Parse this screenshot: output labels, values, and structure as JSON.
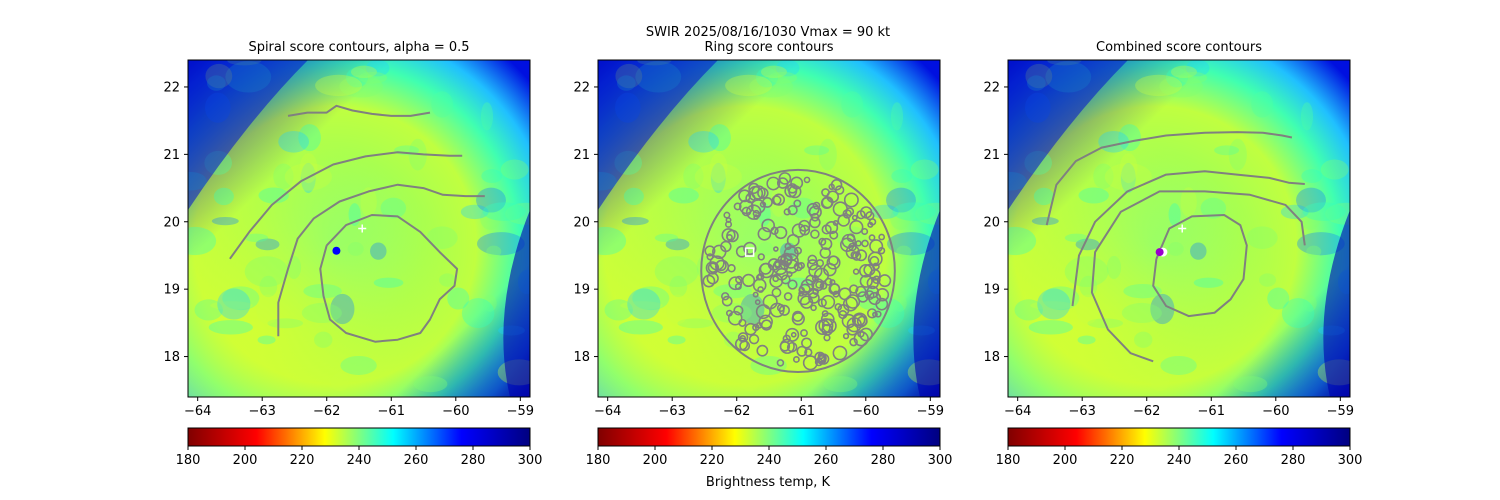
{
  "figure": {
    "suptitle_line1": "SWIR  2025/08/16/1030    Vmax = 90 kt",
    "colorbar_label": "Brightness temp, K"
  },
  "colormap": {
    "name": "jet-reversed",
    "stops": [
      "#800000",
      "#ff0000",
      "#ffff00",
      "#00ffff",
      "#0000ff",
      "#000080"
    ],
    "range": [
      180,
      300
    ]
  },
  "contour_color": "#808080",
  "chart_data": [
    {
      "type": "heatmap",
      "title": "Spiral score contours, alpha =  0.5",
      "xlim": [
        -64.15,
        -58.85
      ],
      "ylim": [
        17.4,
        22.4
      ],
      "xticks": [
        -64,
        -63,
        -62,
        -61,
        -60,
        -59
      ],
      "yticks": [
        18,
        19,
        20,
        21,
        22
      ],
      "colorbar_ticks": [
        180,
        200,
        220,
        240,
        260,
        280,
        300
      ],
      "markers": [
        {
          "kind": "plus",
          "lon": -61.45,
          "lat": 19.9,
          "color": "#ffffff"
        },
        {
          "kind": "dot",
          "lon": -61.85,
          "lat": 19.57,
          "color": "#0000ff"
        }
      ],
      "contours": [
        [
          [
            -62.6,
            21.57
          ],
          [
            -62.3,
            21.62
          ],
          [
            -62.0,
            21.62
          ],
          [
            -61.85,
            21.72
          ],
          [
            -61.6,
            21.65
          ],
          [
            -61.3,
            21.6
          ],
          [
            -61.0,
            21.57
          ],
          [
            -60.7,
            21.57
          ],
          [
            -60.4,
            21.62
          ]
        ],
        [
          [
            -63.5,
            19.45
          ],
          [
            -63.2,
            19.85
          ],
          [
            -62.85,
            20.25
          ],
          [
            -62.4,
            20.6
          ],
          [
            -61.9,
            20.85
          ],
          [
            -61.4,
            20.97
          ],
          [
            -60.9,
            21.03
          ],
          [
            -60.5,
            21.0
          ],
          [
            -60.1,
            20.98
          ],
          [
            -59.9,
            20.98
          ]
        ],
        [
          [
            -62.75,
            18.3
          ],
          [
            -62.75,
            18.8
          ],
          [
            -62.6,
            19.3
          ],
          [
            -62.45,
            19.75
          ],
          [
            -62.2,
            20.05
          ],
          [
            -61.8,
            20.3
          ],
          [
            -61.35,
            20.45
          ],
          [
            -60.9,
            20.55
          ],
          [
            -60.5,
            20.5
          ],
          [
            -60.2,
            20.4
          ],
          [
            -59.85,
            20.38
          ],
          [
            -59.55,
            20.38
          ]
        ],
        [
          [
            -62.0,
            19.65
          ],
          [
            -61.7,
            19.95
          ],
          [
            -61.3,
            20.1
          ],
          [
            -60.9,
            20.08
          ],
          [
            -60.55,
            19.85
          ],
          [
            -60.25,
            19.55
          ],
          [
            -59.98,
            19.3
          ],
          [
            -60.02,
            19.05
          ],
          [
            -60.25,
            18.85
          ],
          [
            -60.4,
            18.55
          ],
          [
            -60.55,
            18.35
          ],
          [
            -60.9,
            18.25
          ],
          [
            -61.25,
            18.22
          ],
          [
            -61.7,
            18.35
          ],
          [
            -61.95,
            18.55
          ],
          [
            -62.05,
            18.9
          ],
          [
            -62.1,
            19.3
          ],
          [
            -62.0,
            19.65
          ]
        ]
      ]
    },
    {
      "type": "heatmap",
      "title": "Ring score contours",
      "xlim": [
        -64.15,
        -58.85
      ],
      "ylim": [
        17.4,
        22.4
      ],
      "xticks": [
        -64,
        -63,
        -62,
        -61,
        -60,
        -59
      ],
      "yticks": [
        18,
        19,
        20,
        21,
        22
      ],
      "colorbar_ticks": [
        180,
        200,
        220,
        240,
        260,
        280,
        300
      ],
      "ring": {
        "lon": -61.05,
        "lat": 19.27,
        "radius_deg": 1.5
      },
      "markers": [
        {
          "kind": "square",
          "lon": -61.8,
          "lat": 19.55,
          "color": "#ffffff"
        }
      ],
      "contours": []
    },
    {
      "type": "heatmap",
      "title": "Combined score contours",
      "xlim": [
        -64.15,
        -58.85
      ],
      "ylim": [
        17.4,
        22.4
      ],
      "xticks": [
        -64,
        -63,
        -62,
        -61,
        -60,
        -59
      ],
      "yticks": [
        18,
        19,
        20,
        21,
        22
      ],
      "colorbar_ticks": [
        180,
        200,
        220,
        240,
        260,
        280,
        300
      ],
      "markers": [
        {
          "kind": "plus",
          "lon": -61.45,
          "lat": 19.9,
          "color": "#ffffff"
        },
        {
          "kind": "circle",
          "lon": -61.75,
          "lat": 19.55,
          "color": "#ffffff"
        },
        {
          "kind": "dot",
          "lon": -61.8,
          "lat": 19.55,
          "color": "#9900cc"
        }
      ],
      "contours": [
        [
          [
            -63.55,
            19.95
          ],
          [
            -63.4,
            20.55
          ],
          [
            -63.1,
            20.9
          ],
          [
            -62.7,
            21.1
          ],
          [
            -62.2,
            21.2
          ],
          [
            -61.7,
            21.28
          ],
          [
            -61.1,
            21.32
          ],
          [
            -60.6,
            21.33
          ],
          [
            -60.2,
            21.32
          ],
          [
            -59.9,
            21.28
          ],
          [
            -59.75,
            21.25
          ]
        ],
        [
          [
            -63.15,
            18.75
          ],
          [
            -63.05,
            19.5
          ],
          [
            -62.8,
            20.0
          ],
          [
            -62.3,
            20.45
          ],
          [
            -61.7,
            20.7
          ],
          [
            -61.1,
            20.75
          ],
          [
            -60.6,
            20.7
          ],
          [
            -60.1,
            20.65
          ],
          [
            -59.8,
            20.58
          ],
          [
            -59.55,
            20.56
          ]
        ],
        [
          [
            -61.9,
            17.93
          ],
          [
            -62.25,
            18.05
          ],
          [
            -62.6,
            18.4
          ],
          [
            -62.85,
            18.95
          ],
          [
            -62.8,
            19.55
          ],
          [
            -62.4,
            20.15
          ],
          [
            -61.8,
            20.45
          ],
          [
            -61.1,
            20.45
          ],
          [
            -60.4,
            20.4
          ],
          [
            -59.85,
            20.25
          ],
          [
            -59.6,
            20.0
          ],
          [
            -59.55,
            19.65
          ]
        ],
        [
          [
            -61.85,
            19.45
          ],
          [
            -61.65,
            19.9
          ],
          [
            -61.3,
            20.08
          ],
          [
            -60.8,
            20.1
          ],
          [
            -60.55,
            19.95
          ],
          [
            -60.45,
            19.65
          ],
          [
            -60.5,
            19.15
          ],
          [
            -60.7,
            18.85
          ],
          [
            -60.95,
            18.65
          ],
          [
            -61.35,
            18.6
          ],
          [
            -61.7,
            18.75
          ],
          [
            -61.9,
            19.05
          ],
          [
            -61.85,
            19.45
          ]
        ]
      ]
    }
  ]
}
